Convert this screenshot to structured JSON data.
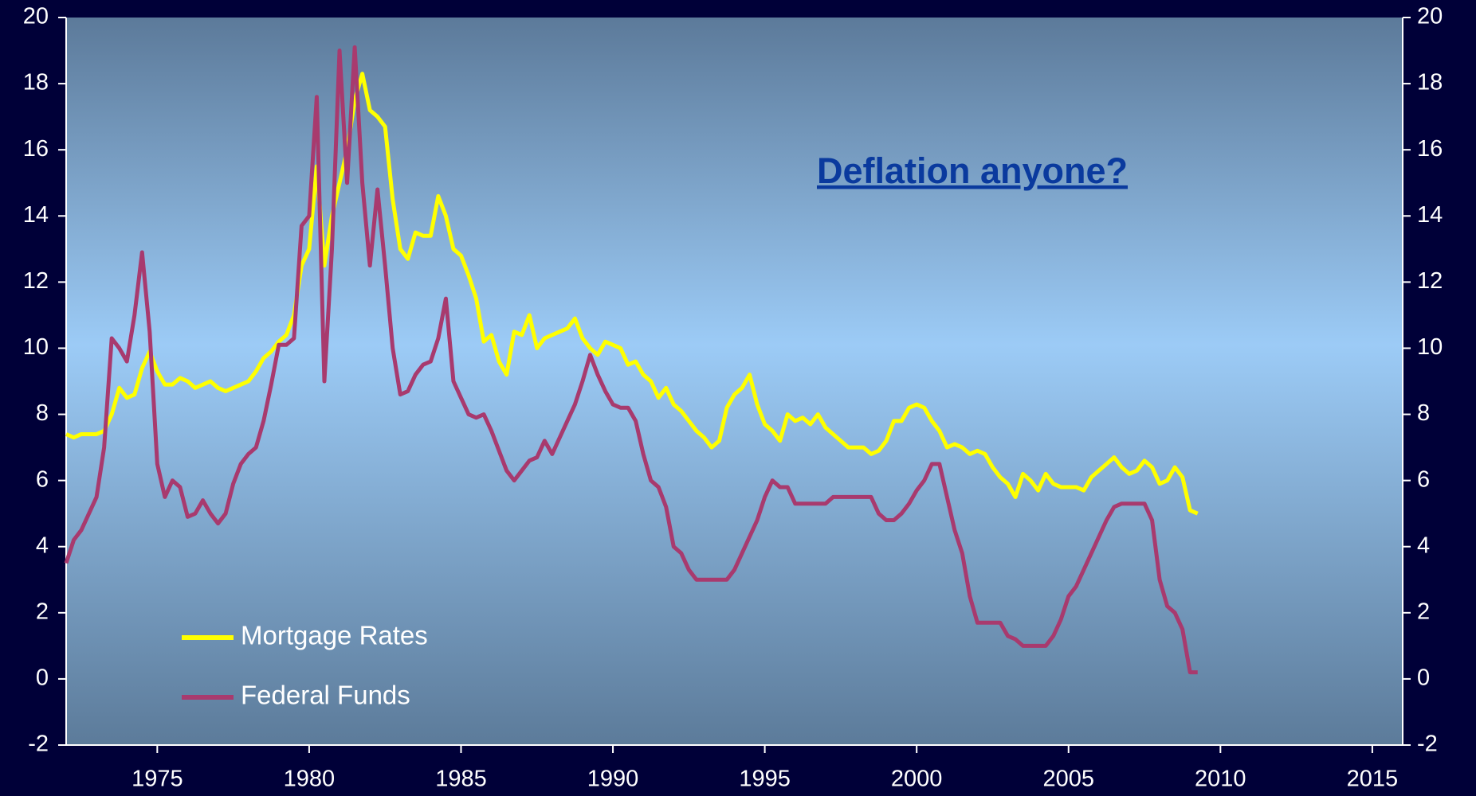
{
  "chart_data": {
    "type": "line",
    "annotation": "Deflation anyone?",
    "x": [
      1972,
      1972.25,
      1972.5,
      1972.75,
      1973,
      1973.25,
      1973.5,
      1973.75,
      1974,
      1974.25,
      1974.5,
      1974.75,
      1975,
      1975.25,
      1975.5,
      1975.75,
      1976,
      1976.25,
      1976.5,
      1976.75,
      1977,
      1977.25,
      1977.5,
      1977.75,
      1978,
      1978.25,
      1978.5,
      1978.75,
      1979,
      1979.25,
      1979.5,
      1979.75,
      1980,
      1980.25,
      1980.5,
      1980.75,
      1981,
      1981.25,
      1981.5,
      1981.75,
      1982,
      1982.25,
      1982.5,
      1982.75,
      1983,
      1983.25,
      1983.5,
      1983.75,
      1984,
      1984.25,
      1984.5,
      1984.75,
      1985,
      1985.25,
      1985.5,
      1985.75,
      1986,
      1986.25,
      1986.5,
      1986.75,
      1987,
      1987.25,
      1987.5,
      1987.75,
      1988,
      1988.25,
      1988.5,
      1988.75,
      1989,
      1989.25,
      1989.5,
      1989.75,
      1990,
      1990.25,
      1990.5,
      1990.75,
      1991,
      1991.25,
      1991.5,
      1991.75,
      1992,
      1992.25,
      1992.5,
      1992.75,
      1993,
      1993.25,
      1993.5,
      1993.75,
      1994,
      1994.25,
      1994.5,
      1994.75,
      1995,
      1995.25,
      1995.5,
      1995.75,
      1996,
      1996.25,
      1996.5,
      1996.75,
      1997,
      1997.25,
      1997.5,
      1997.75,
      1998,
      1998.25,
      1998.5,
      1998.75,
      1999,
      1999.25,
      1999.5,
      1999.75,
      2000,
      2000.25,
      2000.5,
      2000.75,
      2001,
      2001.25,
      2001.5,
      2001.75,
      2002,
      2002.25,
      2002.5,
      2002.75,
      2003,
      2003.25,
      2003.5,
      2003.75,
      2004,
      2004.25,
      2004.5,
      2004.75,
      2005,
      2005.25,
      2005.5,
      2005.75,
      2006,
      2006.25,
      2006.5,
      2006.75,
      2007,
      2007.25,
      2007.5,
      2007.75,
      2008,
      2008.25,
      2008.5,
      2008.75,
      2009,
      2009.25
    ],
    "series": [
      {
        "name": "Mortgage Rates",
        "color": "#ffff00",
        "values": [
          7.4,
          7.3,
          7.4,
          7.4,
          7.4,
          7.5,
          8.0,
          8.8,
          8.5,
          8.6,
          9.4,
          9.9,
          9.3,
          8.9,
          8.9,
          9.1,
          9.0,
          8.8,
          8.9,
          9.0,
          8.8,
          8.7,
          8.8,
          8.9,
          9.0,
          9.3,
          9.7,
          9.9,
          10.2,
          10.4,
          11.0,
          12.5,
          13.0,
          15.5,
          12.5,
          14.0,
          15.0,
          16.0,
          17.5,
          18.3,
          17.2,
          17.0,
          16.7,
          14.5,
          13.0,
          12.7,
          13.5,
          13.4,
          13.4,
          14.6,
          14.0,
          13.0,
          12.8,
          12.2,
          11.5,
          10.2,
          10.4,
          9.6,
          9.2,
          10.5,
          10.4,
          11.0,
          10.0,
          10.3,
          10.4,
          10.5,
          10.6,
          10.9,
          10.3,
          10.0,
          9.8,
          10.2,
          10.1,
          10.0,
          9.5,
          9.6,
          9.2,
          9.0,
          8.5,
          8.8,
          8.3,
          8.1,
          7.8,
          7.5,
          7.3,
          7.0,
          7.2,
          8.2,
          8.6,
          8.8,
          9.2,
          8.3,
          7.7,
          7.5,
          7.2,
          8.0,
          7.8,
          7.9,
          7.7,
          8.0,
          7.6,
          7.4,
          7.2,
          7.0,
          7.0,
          7.0,
          6.8,
          6.9,
          7.2,
          7.8,
          7.8,
          8.2,
          8.3,
          8.2,
          7.8,
          7.5,
          7.0,
          7.1,
          7.0,
          6.8,
          6.9,
          6.8,
          6.4,
          6.1,
          5.9,
          5.5,
          6.2,
          6.0,
          5.7,
          6.2,
          5.9,
          5.8,
          5.8,
          5.8,
          5.7,
          6.1,
          6.3,
          6.5,
          6.7,
          6.4,
          6.2,
          6.3,
          6.6,
          6.4,
          5.9,
          6.0,
          6.4,
          6.1,
          5.1,
          5.0
        ]
      },
      {
        "name": "Federal Funds",
        "color": "#a83a6e",
        "values": [
          3.5,
          4.2,
          4.5,
          5.0,
          5.5,
          7.0,
          10.3,
          10.0,
          9.6,
          11.0,
          12.9,
          10.5,
          6.5,
          5.5,
          6.0,
          5.8,
          4.9,
          5.0,
          5.4,
          5.0,
          4.7,
          5.0,
          5.9,
          6.5,
          6.8,
          7.0,
          7.8,
          8.9,
          10.1,
          10.1,
          10.3,
          13.7,
          14.0,
          17.6,
          9.0,
          13.0,
          19.0,
          15.0,
          19.1,
          15.0,
          12.5,
          14.8,
          12.5,
          10.0,
          8.6,
          8.7,
          9.2,
          9.5,
          9.6,
          10.3,
          11.5,
          9.0,
          8.5,
          8.0,
          7.9,
          8.0,
          7.5,
          6.9,
          6.3,
          6.0,
          6.3,
          6.6,
          6.7,
          7.2,
          6.8,
          7.3,
          7.8,
          8.3,
          9.0,
          9.8,
          9.2,
          8.7,
          8.3,
          8.2,
          8.2,
          7.8,
          6.8,
          6.0,
          5.8,
          5.2,
          4.0,
          3.8,
          3.3,
          3.0,
          3.0,
          3.0,
          3.0,
          3.0,
          3.3,
          3.8,
          4.3,
          4.8,
          5.5,
          6.0,
          5.8,
          5.8,
          5.3,
          5.3,
          5.3,
          5.3,
          5.3,
          5.5,
          5.5,
          5.5,
          5.5,
          5.5,
          5.5,
          5.0,
          4.8,
          4.8,
          5.0,
          5.3,
          5.7,
          6.0,
          6.5,
          6.5,
          5.5,
          4.5,
          3.8,
          2.5,
          1.7,
          1.7,
          1.7,
          1.7,
          1.3,
          1.2,
          1.0,
          1.0,
          1.0,
          1.0,
          1.3,
          1.8,
          2.5,
          2.8,
          3.3,
          3.8,
          4.3,
          4.8,
          5.2,
          5.3,
          5.3,
          5.3,
          5.3,
          4.8,
          3.0,
          2.2,
          2.0,
          1.5,
          0.2,
          0.2
        ]
      }
    ],
    "xlim": [
      1972,
      2016
    ],
    "xticks": [
      1975,
      1980,
      1985,
      1990,
      1995,
      2000,
      2005,
      2010,
      2015
    ],
    "ylim": [
      -2,
      20
    ],
    "yticks": [
      -2,
      0,
      2,
      4,
      6,
      8,
      10,
      12,
      14,
      16,
      18,
      20
    ],
    "y2lim": [
      -2,
      20
    ],
    "y2ticks": [
      -2,
      0,
      2,
      4,
      6,
      8,
      10,
      12,
      14,
      16,
      18,
      20
    ],
    "legend": "lower left"
  }
}
